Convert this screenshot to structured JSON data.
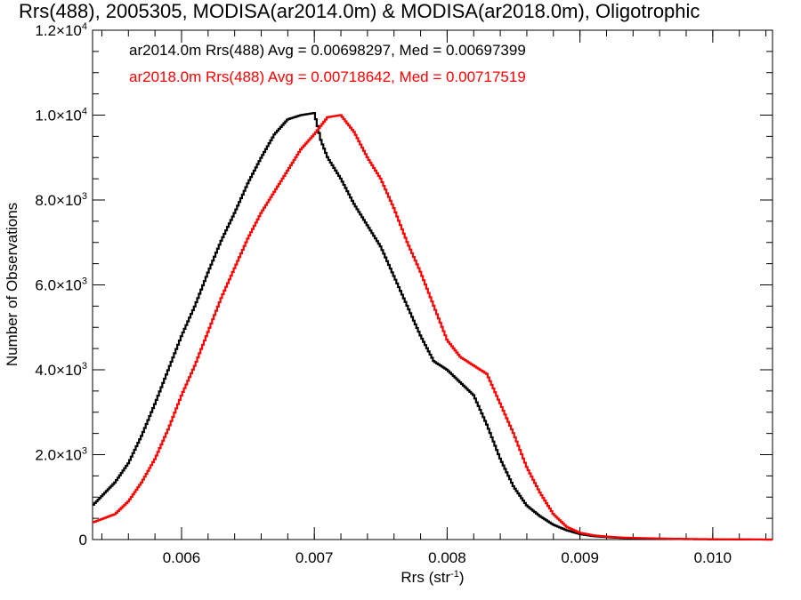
{
  "chart_data": {
    "type": "line",
    "title": "Rrs(488), 2005305, MODISA(ar2014.0m) & MODISA(ar2018.0m), Oligotrophic",
    "xlabel": "Rrs (str",
    "xlabel_sup": "-1",
    "xlabel_suffix": ")",
    "ylabel": "Number of Observations",
    "xlim": [
      0.00533,
      0.01045
    ],
    "ylim": [
      0,
      12000
    ],
    "x_ticks": [
      {
        "value": 0.006,
        "label": "0.006"
      },
      {
        "value": 0.007,
        "label": "0.007"
      },
      {
        "value": 0.008,
        "label": "0.008"
      },
      {
        "value": 0.009,
        "label": "0.009"
      },
      {
        "value": 0.01,
        "label": "0.010"
      }
    ],
    "y_ticks": [
      {
        "value": 0,
        "mant": "0",
        "exp": ""
      },
      {
        "value": 2000,
        "mant": "2.0×10",
        "exp": "3"
      },
      {
        "value": 4000,
        "mant": "4.0×10",
        "exp": "3"
      },
      {
        "value": 6000,
        "mant": "6.0×10",
        "exp": "3"
      },
      {
        "value": 8000,
        "mant": "8.0×10",
        "exp": "3"
      },
      {
        "value": 10000,
        "mant": "1.0×10",
        "exp": "4"
      },
      {
        "value": 12000,
        "mant": "1.2×10",
        "exp": "4"
      }
    ],
    "grid": false,
    "legend_position": "top-left",
    "series": [
      {
        "legend": "ar2014.0m Rrs(488) Avg = 0.00698297, Med = 0.00697399",
        "color": "#000000",
        "x": [
          0.00533,
          0.0055,
          0.0056,
          0.0057,
          0.0058,
          0.0059,
          0.006,
          0.0061,
          0.0062,
          0.0063,
          0.0064,
          0.0065,
          0.0066,
          0.0067,
          0.0068,
          0.0069,
          0.007,
          0.00705,
          0.0071,
          0.0072,
          0.0073,
          0.0074,
          0.0075,
          0.0076,
          0.0077,
          0.0078,
          0.0079,
          0.008,
          0.0081,
          0.0082,
          0.0083,
          0.0084,
          0.0085,
          0.0086,
          0.0087,
          0.0088,
          0.0089,
          0.009,
          0.0091,
          0.0092,
          0.0093,
          0.0094,
          0.0096,
          0.0098,
          0.01,
          0.01045
        ],
        "y": [
          800,
          1350,
          1800,
          2450,
          3200,
          4000,
          4800,
          5500,
          6300,
          7050,
          7700,
          8400,
          9000,
          9550,
          9900,
          10000,
          10050,
          9400,
          9000,
          8500,
          7900,
          7400,
          6900,
          6200,
          5500,
          4800,
          4200,
          4000,
          3700,
          3400,
          2700,
          1900,
          1250,
          800,
          550,
          350,
          220,
          130,
          80,
          60,
          40,
          30,
          20,
          10,
          5,
          0
        ]
      },
      {
        "legend": "ar2018.0m Rrs(488) Avg = 0.00718642, Med = 0.00717519",
        "color": "#ff0000",
        "x": [
          0.00533,
          0.0055,
          0.0056,
          0.0057,
          0.0058,
          0.0059,
          0.006,
          0.0061,
          0.0062,
          0.0063,
          0.0064,
          0.0065,
          0.0066,
          0.0067,
          0.0068,
          0.0069,
          0.007,
          0.0071,
          0.0072,
          0.0073,
          0.0074,
          0.0075,
          0.0076,
          0.0077,
          0.0078,
          0.0079,
          0.008,
          0.0081,
          0.0082,
          0.0083,
          0.0084,
          0.0085,
          0.0086,
          0.0087,
          0.0088,
          0.0089,
          0.009,
          0.0091,
          0.0092,
          0.0093,
          0.0094,
          0.0096,
          0.0098,
          0.01,
          0.01045
        ],
        "y": [
          400,
          600,
          900,
          1350,
          1900,
          2600,
          3400,
          4100,
          4900,
          5700,
          6400,
          7100,
          7700,
          8200,
          8700,
          9200,
          9550,
          9950,
          10000,
          9600,
          9000,
          8500,
          7800,
          7000,
          6300,
          5500,
          4700,
          4300,
          4100,
          3900,
          3200,
          2500,
          1700,
          1100,
          600,
          300,
          160,
          100,
          70,
          50,
          40,
          25,
          15,
          8,
          0
        ]
      }
    ]
  }
}
